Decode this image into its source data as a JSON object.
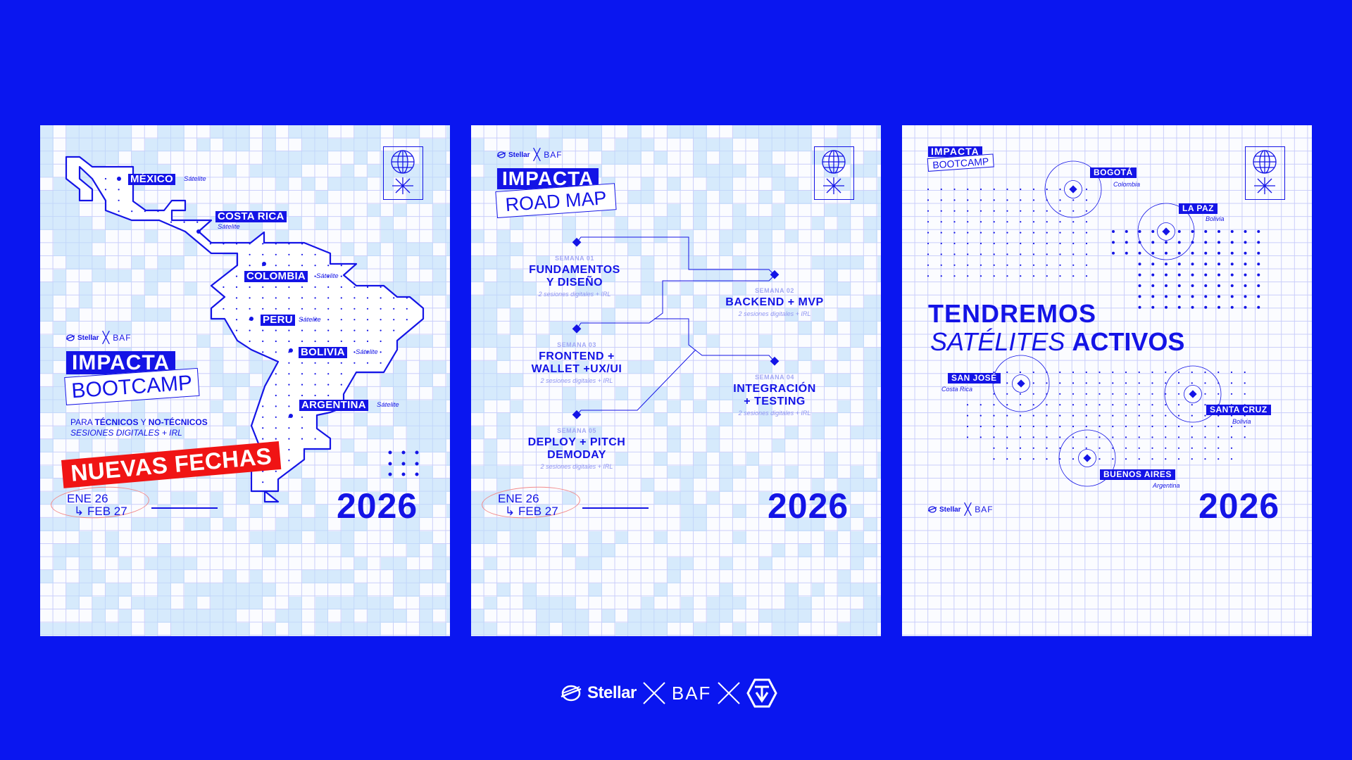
{
  "colors": {
    "background": "#0a16f0",
    "accent": "#1414e6",
    "highlight_red": "#f01414",
    "light_block": "#bedefa"
  },
  "brand": {
    "stellar": "Stellar",
    "baf": "BAF"
  },
  "panel1": {
    "title": "IMPACTA",
    "subtitle": "BOOTCAMP",
    "audience": {
      "prefix": "PARA ",
      "a": "TÉCNICOS",
      "mid": " Y ",
      "b": "NO-TÉCNICOS"
    },
    "sessions": "SESIONES DIGITALES + IRL",
    "banner": "NUEVAS FECHAS",
    "date_start": "ENE 26",
    "date_arrow": "↳",
    "date_end": "FEB 27",
    "year": "2026",
    "countries": [
      {
        "name": "MÉXICO",
        "label": "Sátelite"
      },
      {
        "name": "COSTA RICA",
        "label": "Sátelite"
      },
      {
        "name": "COLOMBIA",
        "label": "Sátelite"
      },
      {
        "name": "PERU",
        "label": "Sátelite"
      },
      {
        "name": "BOLIVIA",
        "label": "Sátelite"
      },
      {
        "name": "ARGENTINA",
        "label": "Sátelite"
      }
    ]
  },
  "panel2": {
    "title": "IMPACTA",
    "subtitle": "ROAD MAP",
    "date_start": "ENE 26",
    "date_arrow": "↳",
    "date_end": "FEB 27",
    "year": "2026",
    "weeks": [
      {
        "label": "SEMANA 01",
        "title1": "FUNDAMENTOS",
        "title2": "Y DISEÑO",
        "detail": "2 sesiones digitales + IRL"
      },
      {
        "label": "SEMANA 02",
        "title1": "BACKEND + MVP",
        "title2": "",
        "detail": "2 sesiones digitales + IRL"
      },
      {
        "label": "SEMANA 03",
        "title1": "FRONTEND +",
        "title2": "WALLET +UX/UI",
        "detail": "2 sesiones digitales + IRL"
      },
      {
        "label": "SEMANA 04",
        "title1": "INTEGRACIÓN",
        "title2": "+ TESTING",
        "detail": "2 sesiones digitales + IRL"
      },
      {
        "label": "SEMANA 05",
        "title1": "DEPLOY + PITCH",
        "title2": "DEMODAY",
        "detail": "2 sesiones digitales + IRL"
      }
    ]
  },
  "panel3": {
    "title": "IMPACTA",
    "subtitle": "BOOTCAMP",
    "headline1": "TENDREMOS",
    "headline2_italic": "SATÉLITES",
    "headline2_bold": "ACTIVOS",
    "year": "2026",
    "cities": [
      {
        "city": "BOGOTÁ",
        "country": "Colombia"
      },
      {
        "city": "LA PAZ",
        "country": "Bolivia"
      },
      {
        "city": "SAN JOSÉ",
        "country": "Costa Rica"
      },
      {
        "city": "SANTA CRUZ",
        "country": "Bolivia"
      },
      {
        "city": "BUENOS AIRES",
        "country": "Argentina"
      }
    ]
  },
  "icons": [
    "globe-icon",
    "asterisk-icon",
    "stellar-logo-icon",
    "cross-icon",
    "hexagon-logo-icon"
  ]
}
